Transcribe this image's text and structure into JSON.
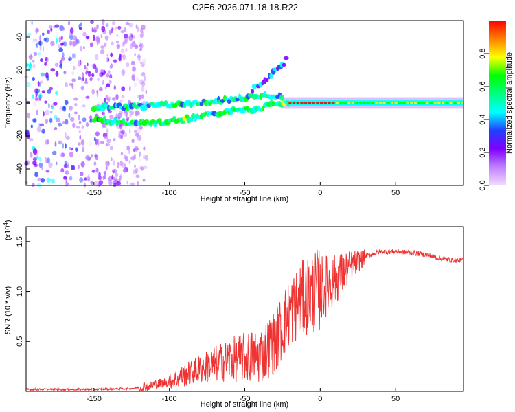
{
  "chart_data": [
    {
      "type": "heatmap",
      "title": "C2E6.2026.071.18.18.R22",
      "xlabel": "Height of straight line (km)",
      "ylabel": "Frequency (Hz)",
      "xlim": [
        -195,
        95
      ],
      "ylim": [
        -50,
        50
      ],
      "xticks": [
        -150,
        -100,
        -50,
        0,
        50
      ],
      "yticks": [
        -40,
        -20,
        0,
        20,
        40
      ],
      "colorbar": {
        "label": "Normalized spectral amplitude",
        "range": [
          0,
          1
        ],
        "ticks": [
          "0.0",
          "0.2",
          "0.4",
          "0.6",
          "0.8"
        ],
        "colors": [
          "#f2dcff",
          "#c080ff",
          "#8000ff",
          "#2040ff",
          "#00ffff",
          "#00ff80",
          "#00ff00",
          "#ffff00",
          "#ff8000",
          "#ff0000"
        ]
      },
      "features": [
        {
          "name": "noise",
          "x_range": [
            -195,
            -115
          ],
          "y_range": [
            -50,
            50
          ],
          "level": 0.25
        },
        {
          "name": "lower branch",
          "points": [
            [
              -150,
              -10
            ],
            [
              -125,
              -12
            ],
            [
              -110,
              -12
            ],
            [
              -100,
              -11
            ],
            [
              -80,
              -8
            ],
            [
              -60,
              -5
            ],
            [
              -45,
              -4
            ],
            [
              -30,
              -1
            ],
            [
              -20,
              1
            ]
          ],
          "level": 0.55
        },
        {
          "name": "upper branch",
          "points": [
            [
              -150,
              -3
            ],
            [
              -120,
              -2
            ],
            [
              -100,
              -1
            ],
            [
              -80,
              0
            ],
            [
              -60,
              2
            ],
            [
              -45,
              4
            ],
            [
              -35,
              5
            ],
            [
              -25,
              3
            ]
          ],
          "level": 0.5
        },
        {
          "name": "rising echo",
          "points": [
            [
              -45,
              8
            ],
            [
              -40,
              12
            ],
            [
              -35,
              15
            ],
            [
              -30,
              19
            ],
            [
              -25,
              23
            ],
            [
              -22,
              27
            ]
          ],
          "level": 0.35
        },
        {
          "name": "steady line",
          "points": [
            [
              -20,
              0
            ],
            [
              0,
              0
            ],
            [
              50,
              0
            ],
            [
              95,
              0
            ]
          ],
          "level": 0.85
        }
      ]
    },
    {
      "type": "line",
      "xlabel": "Height of straight line (km)",
      "ylabel": "SNR (10 * v/v)",
      "multiplier": "(x10",
      "multiplier_exp": "4",
      "xlim": [
        -195,
        95
      ],
      "ylim": [
        0,
        1.65
      ],
      "xticks": [
        -150,
        -100,
        -50,
        0,
        50
      ],
      "yticks": [
        0.5,
        1.0,
        1.5
      ],
      "ytick_labels": [
        "0.5",
        "1.0",
        "1.5"
      ],
      "color": "#ee3333",
      "series": [
        {
          "name": "SNR",
          "x": [
            -195,
            -150,
            -125,
            -115,
            -100,
            -80,
            -60,
            -40,
            -30,
            -20,
            -10,
            0,
            10,
            20,
            30,
            40,
            50,
            60,
            70,
            80,
            90,
            95
          ],
          "values": [
            0.02,
            0.02,
            0.03,
            0.05,
            0.1,
            0.22,
            0.32,
            0.36,
            0.5,
            0.8,
            0.95,
            1.02,
            1.12,
            1.25,
            1.35,
            1.4,
            1.4,
            1.39,
            1.37,
            1.33,
            1.31,
            1.32
          ]
        }
      ]
    }
  ]
}
